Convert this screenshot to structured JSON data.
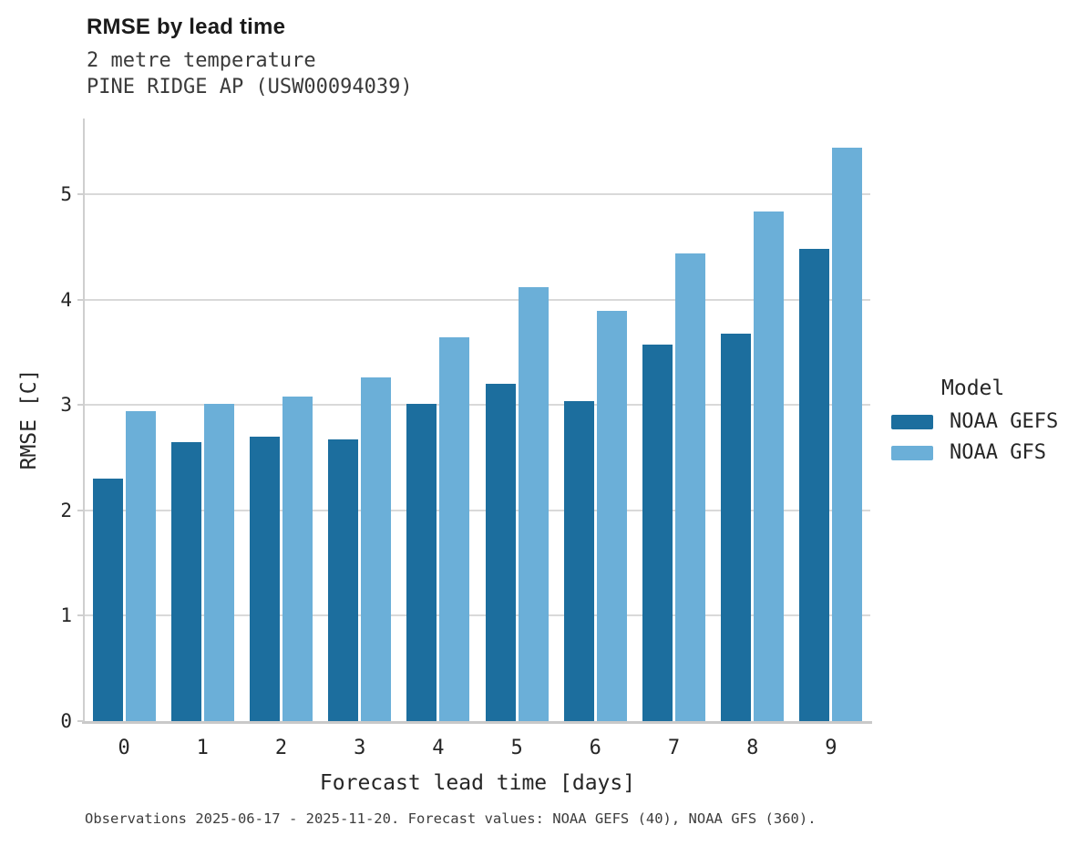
{
  "chart_data": {
    "type": "bar",
    "title": "RMSE by lead time",
    "subtitle": [
      "2 metre temperature",
      "PINE RIDGE AP (USW00094039)"
    ],
    "categories": [
      "0",
      "1",
      "2",
      "3",
      "4",
      "5",
      "6",
      "7",
      "8",
      "9"
    ],
    "series": [
      {
        "name": "NOAA GEFS",
        "color": "#1c6e9e",
        "values": [
          2.3,
          2.65,
          2.7,
          2.67,
          3.01,
          3.2,
          3.04,
          3.57,
          3.68,
          4.48
        ]
      },
      {
        "name": "NOAA GFS",
        "color": "#6bafd8",
        "values": [
          2.94,
          3.01,
          3.08,
          3.26,
          3.64,
          4.12,
          3.89,
          4.44,
          4.84,
          5.44
        ]
      }
    ],
    "xlabel": "Forecast lead time [days]",
    "ylabel": "RMSE [C]",
    "ylim": [
      0,
      5.72
    ],
    "yticks": [
      0,
      1,
      2,
      3,
      4,
      5
    ],
    "grid": "horizontal",
    "legend_title": "Model",
    "legend_position": "right"
  },
  "footer": {
    "note": "Observations 2025-06-17 - 2025-11-20. Forecast values: NOAA GEFS (40), NOAA GFS (360)."
  }
}
